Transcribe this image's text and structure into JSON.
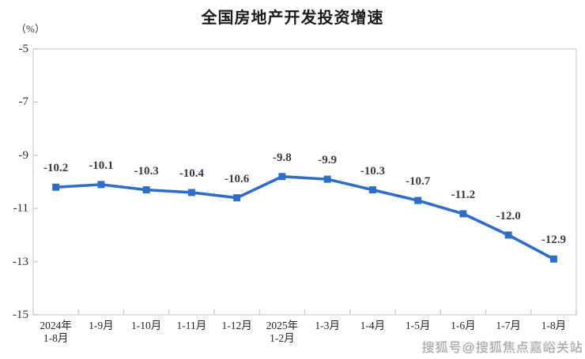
{
  "watermark": "搜狐号@搜狐焦点嘉峪关站",
  "chart_data": {
    "type": "line",
    "title": "全国房地产开发投资增速",
    "unit_label": "（%）",
    "categories": [
      "2024年\n1-8月",
      "1-9月",
      "1-10月",
      "1-11月",
      "1-12月",
      "2025年\n1-2月",
      "1-3月",
      "1-4月",
      "1-5月",
      "1-6月",
      "1-7月",
      "1-8月"
    ],
    "values": [
      -10.2,
      -10.1,
      -10.3,
      -10.4,
      -10.6,
      -9.8,
      -9.9,
      -10.3,
      -10.7,
      -11.2,
      -12.0,
      -12.9
    ],
    "value_labels": [
      "-10.2",
      "-10.1",
      "-10.3",
      "-10.4",
      "-10.6",
      "-9.8",
      "-9.9",
      "-10.3",
      "-10.7",
      "-11.2",
      "-12.0",
      "-12.9"
    ],
    "yticks": [
      -5,
      -7,
      -9,
      -11,
      -13,
      -15
    ],
    "ylim": [
      -15,
      -5
    ],
    "grid": false,
    "legend": false,
    "colors": {
      "line": "#2E6EC8",
      "frame": "#D9D9D9",
      "tick": "#C9C9C9",
      "label_text": "#3a3a42"
    }
  }
}
